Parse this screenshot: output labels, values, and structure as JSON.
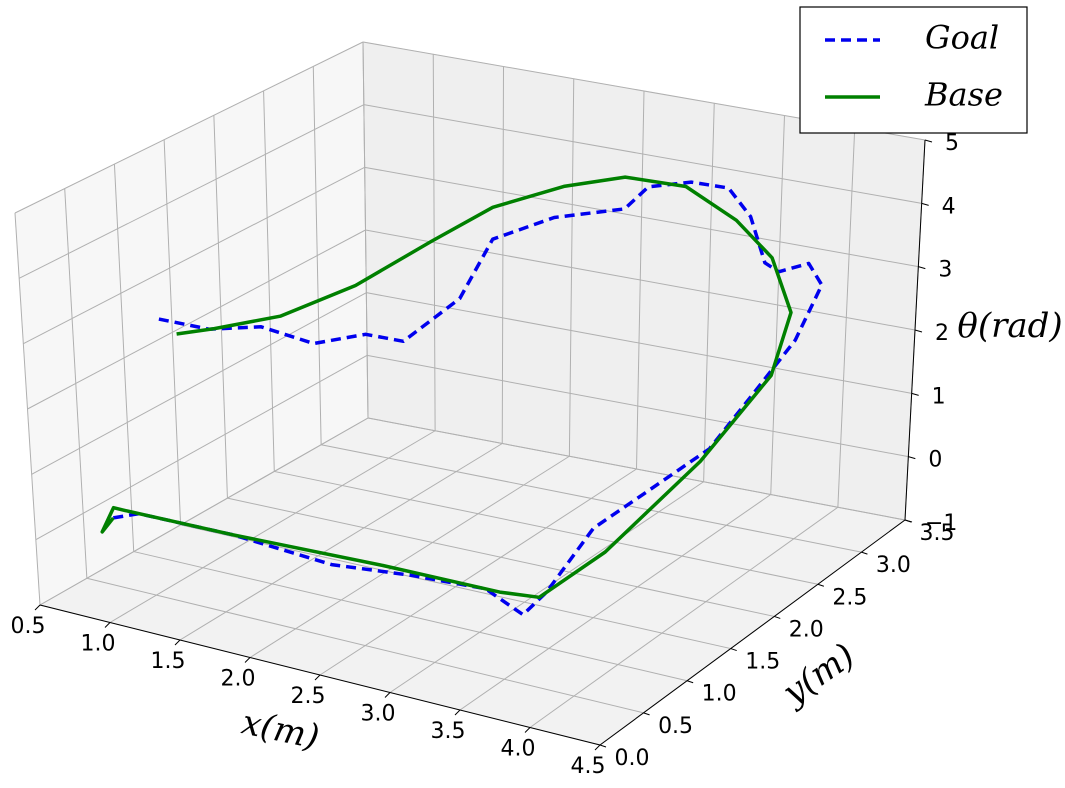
{
  "chart_data": {
    "type": "line3d",
    "xlabel": "x(m)",
    "ylabel": "y(m)",
    "zlabel": "θ(rad)",
    "xlim": [
      0.5,
      4.5
    ],
    "ylim": [
      0,
      3.5
    ],
    "zlim": [
      -1,
      5
    ],
    "xticks": [
      0.5,
      {
        "value": 1,
        "label": "1.0"
      },
      1.5,
      {
        "value": 2,
        "label": "2.0"
      },
      2.5,
      {
        "value": 3,
        "label": "3.0"
      },
      3.5,
      {
        "value": 4,
        "label": "4.0"
      },
      4.5
    ],
    "yticks": [
      {
        "value": 0,
        "label": "0.0"
      },
      0.5,
      {
        "value": 1,
        "label": "1.0"
      },
      1.5,
      {
        "value": 2,
        "label": "2.0"
      },
      2.5,
      {
        "value": 3,
        "label": "3.0"
      },
      3.5
    ],
    "zticks": [
      {
        "value": -1,
        "label": "−1"
      },
      0,
      1,
      2,
      3,
      4,
      5
    ],
    "grid": true,
    "legend": "upper right",
    "series": [
      {
        "name": "Goal",
        "color": "#0000ee",
        "style": "dashed",
        "x": [
          0.75,
          0.9,
          1.5,
          2.2,
          2.7,
          3.2,
          3.5,
          3.6,
          3.55,
          3.7,
          3.8,
          3.85,
          3.95,
          4.0,
          3.9,
          3.75,
          3.65,
          3.6,
          3.5,
          3.3,
          3.0,
          2.9,
          2.6,
          2.3,
          2.2,
          2.0,
          1.8,
          1.5,
          1.2,
          0.9,
          0.6
        ],
        "y": [
          0.45,
          0.5,
          0.6,
          0.6,
          0.7,
          0.75,
          0.7,
          0.8,
          1.4,
          1.9,
          2.3,
          2.7,
          3.0,
          3.2,
          3.2,
          3.1,
          3.1,
          3.0,
          2.9,
          2.8,
          2.8,
          2.7,
          2.4,
          2.2,
          2.0,
          1.7,
          1.6,
          1.5,
          1.4,
          1.3,
          1.2
        ],
        "values": [
          0.1,
          0.2,
          0.1,
          0.0,
          0.0,
          0.0,
          -0.2,
          0.1,
          0.5,
          0.8,
          1.0,
          1.5,
          2.1,
          2.8,
          3.1,
          3.0,
          3.1,
          3.9,
          4.4,
          4.5,
          4.3,
          4.0,
          4.0,
          3.7,
          2.9,
          2.4,
          2.5,
          2.3,
          2.5,
          2.4,
          2.5
        ]
      },
      {
        "name": "Base",
        "color": "#008000",
        "style": "solid",
        "x": [
          0.75,
          0.7,
          0.72,
          0.8,
          1.5,
          2.5,
          3.3,
          3.55,
          3.7,
          3.8,
          3.85,
          3.85,
          3.7,
          3.5,
          3.2,
          2.9,
          2.6,
          2.3,
          2.0,
          1.6,
          1.2,
          0.8,
          0.6
        ],
        "y": [
          0.45,
          0.4,
          0.5,
          0.5,
          0.6,
          0.7,
          0.75,
          0.8,
          1.3,
          2.2,
          2.9,
          3.1,
          3.1,
          3.0,
          2.9,
          2.7,
          2.5,
          2.2,
          2.0,
          1.8,
          1.6,
          1.5,
          1.4
        ],
        "values": [
          0.1,
          -0.1,
          0.2,
          0.2,
          0.1,
          0.05,
          0.0,
          0.0,
          0.3,
          0.9,
          1.6,
          2.4,
          3.2,
          3.8,
          4.3,
          4.5,
          4.4,
          4.2,
          3.7,
          3.0,
          2.5,
          2.2,
          2.1
        ]
      }
    ]
  }
}
